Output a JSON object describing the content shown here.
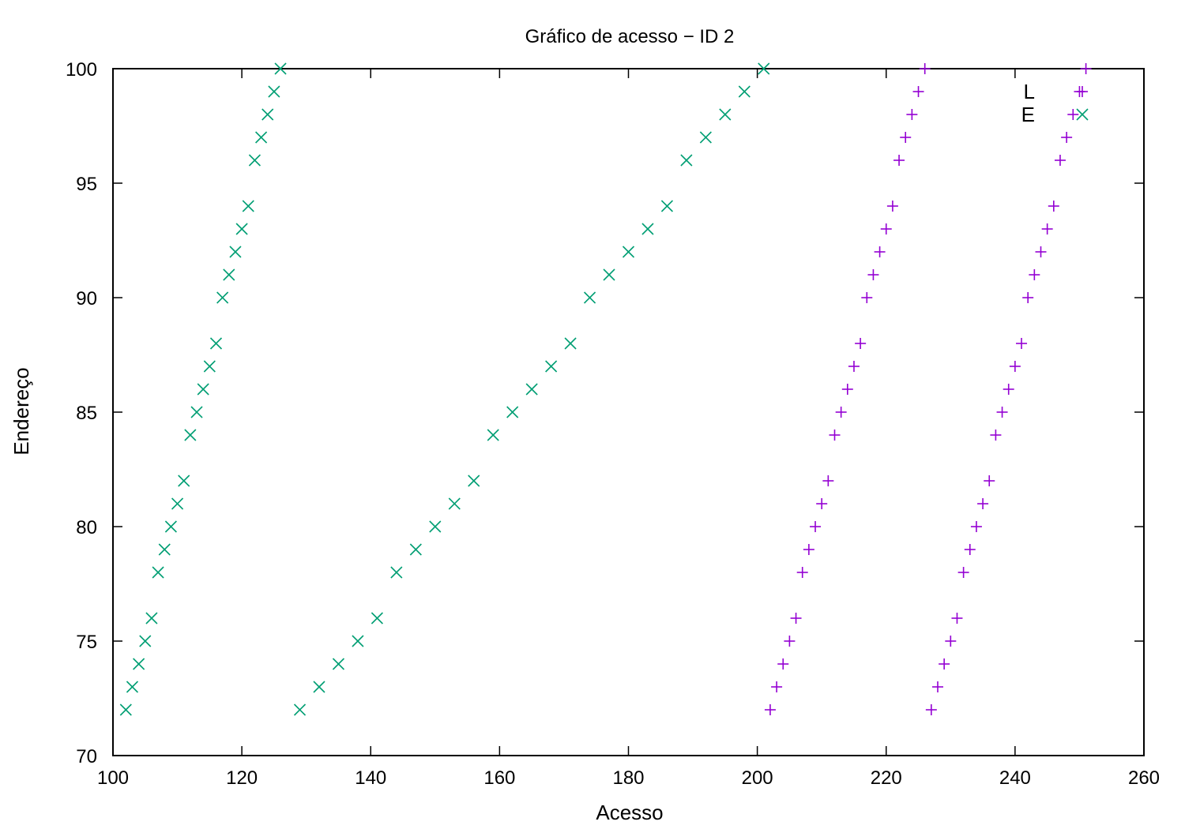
{
  "chart_data": {
    "type": "scatter",
    "title": "Gráfico de acesso − ID 2",
    "xlabel": "Acesso",
    "ylabel": "Endereço",
    "xlim": [
      100,
      260
    ],
    "ylim": [
      70,
      100
    ],
    "xticks": [
      "100",
      "120",
      "140",
      "160",
      "180",
      "200",
      "220",
      "240",
      "260"
    ],
    "yticks": [
      "70",
      "75",
      "80",
      "85",
      "90",
      "95",
      "100"
    ],
    "grid": false,
    "legend_position": "top-right",
    "series": [
      {
        "name": "L",
        "marker": "plus",
        "color": "#9400d3",
        "points": [
          [
            202,
            72
          ],
          [
            203,
            73
          ],
          [
            204,
            74
          ],
          [
            205,
            75
          ],
          [
            206,
            76
          ],
          [
            207,
            78
          ],
          [
            208,
            79
          ],
          [
            209,
            80
          ],
          [
            210,
            81
          ],
          [
            211,
            82
          ],
          [
            212,
            84
          ],
          [
            213,
            85
          ],
          [
            214,
            86
          ],
          [
            215,
            87
          ],
          [
            216,
            88
          ],
          [
            217,
            90
          ],
          [
            218,
            91
          ],
          [
            219,
            92
          ],
          [
            220,
            93
          ],
          [
            221,
            94
          ],
          [
            222,
            96
          ],
          [
            223,
            97
          ],
          [
            224,
            98
          ],
          [
            225,
            99
          ],
          [
            226,
            100
          ],
          [
            227,
            72
          ],
          [
            228,
            73
          ],
          [
            229,
            74
          ],
          [
            230,
            75
          ],
          [
            231,
            76
          ],
          [
            232,
            78
          ],
          [
            233,
            79
          ],
          [
            234,
            80
          ],
          [
            235,
            81
          ],
          [
            236,
            82
          ],
          [
            237,
            84
          ],
          [
            238,
            85
          ],
          [
            239,
            86
          ],
          [
            240,
            87
          ],
          [
            241,
            88
          ],
          [
            242,
            90
          ],
          [
            243,
            91
          ],
          [
            244,
            92
          ],
          [
            245,
            93
          ],
          [
            246,
            94
          ],
          [
            247,
            96
          ],
          [
            248,
            97
          ],
          [
            249,
            98
          ],
          [
            250,
            99
          ],
          [
            251,
            100
          ]
        ]
      },
      {
        "name": "E",
        "marker": "cross",
        "color": "#009e73",
        "points": [
          [
            102,
            72
          ],
          [
            103,
            73
          ],
          [
            104,
            74
          ],
          [
            105,
            75
          ],
          [
            106,
            76
          ],
          [
            107,
            78
          ],
          [
            108,
            79
          ],
          [
            109,
            80
          ],
          [
            110,
            81
          ],
          [
            111,
            82
          ],
          [
            112,
            84
          ],
          [
            113,
            85
          ],
          [
            114,
            86
          ],
          [
            115,
            87
          ],
          [
            116,
            88
          ],
          [
            117,
            90
          ],
          [
            118,
            91
          ],
          [
            119,
            92
          ],
          [
            120,
            93
          ],
          [
            121,
            94
          ],
          [
            122,
            96
          ],
          [
            123,
            97
          ],
          [
            124,
            98
          ],
          [
            125,
            99
          ],
          [
            126,
            100
          ],
          [
            129,
            72
          ],
          [
            132,
            73
          ],
          [
            135,
            74
          ],
          [
            138,
            75
          ],
          [
            141,
            76
          ],
          [
            144,
            78
          ],
          [
            147,
            79
          ],
          [
            150,
            80
          ],
          [
            153,
            81
          ],
          [
            156,
            82
          ],
          [
            159,
            84
          ],
          [
            162,
            85
          ],
          [
            165,
            86
          ],
          [
            168,
            87
          ],
          [
            171,
            88
          ],
          [
            174,
            90
          ],
          [
            177,
            91
          ],
          [
            180,
            92
          ],
          [
            183,
            93
          ],
          [
            186,
            94
          ],
          [
            189,
            96
          ],
          [
            192,
            97
          ],
          [
            195,
            98
          ],
          [
            198,
            99
          ],
          [
            201,
            100
          ]
        ]
      }
    ]
  }
}
